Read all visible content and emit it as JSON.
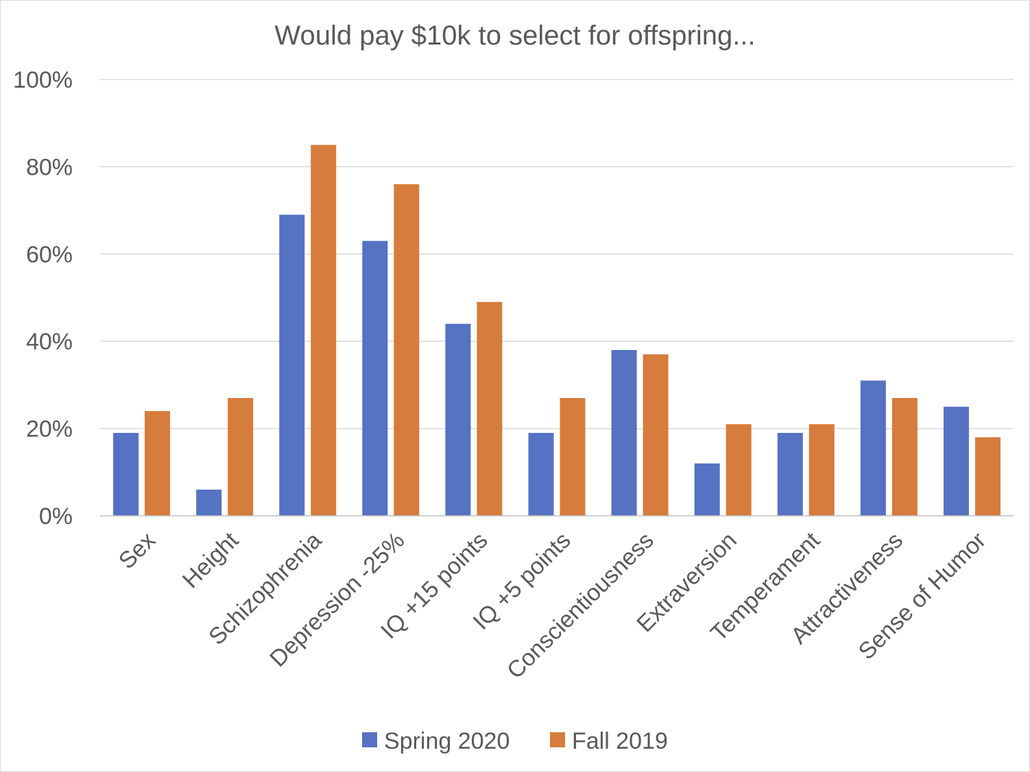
{
  "chart_data": {
    "type": "bar",
    "title": "Would pay $10k to select for offspring...",
    "xlabel": "",
    "ylabel": "",
    "ylim": [
      0,
      100
    ],
    "yticks": [
      0,
      20,
      40,
      60,
      80,
      100
    ],
    "ytick_labels": [
      "0%",
      "20%",
      "40%",
      "60%",
      "80%",
      "100%"
    ],
    "grid": true,
    "legend_position": "bottom",
    "categories": [
      "Sex",
      "Height",
      "Schizophrenia",
      "Depression -25%",
      "IQ +15 points",
      "IQ +5 points",
      "Conscientiousness",
      "Extraversion",
      "Temperament",
      "Attractiveness",
      "Sense of Humor"
    ],
    "series": [
      {
        "name": "Spring 2020",
        "color": "#5572c3",
        "values": [
          19,
          6,
          69,
          63,
          44,
          19,
          38,
          12,
          19,
          31,
          25
        ]
      },
      {
        "name": "Fall 2019",
        "color": "#d67c3c",
        "values": [
          24,
          27,
          85,
          76,
          49,
          27,
          37,
          21,
          21,
          27,
          18
        ]
      }
    ]
  }
}
